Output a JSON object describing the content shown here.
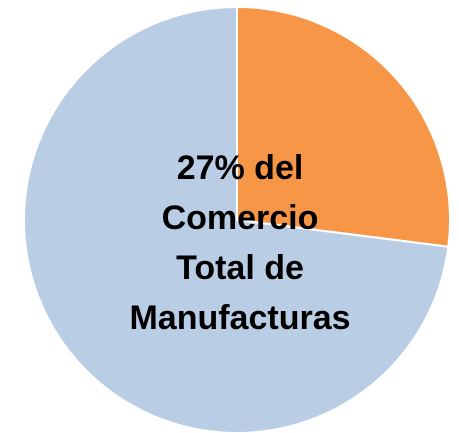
{
  "chart_data": {
    "type": "pie",
    "categories": [
      null,
      null
    ],
    "values": [
      27,
      73
    ],
    "colors": [
      "#F79646",
      "#B9CDE5"
    ],
    "annotation_lines": [
      "27% del",
      "Comercio",
      "Total de",
      "Manufacturas"
    ]
  }
}
